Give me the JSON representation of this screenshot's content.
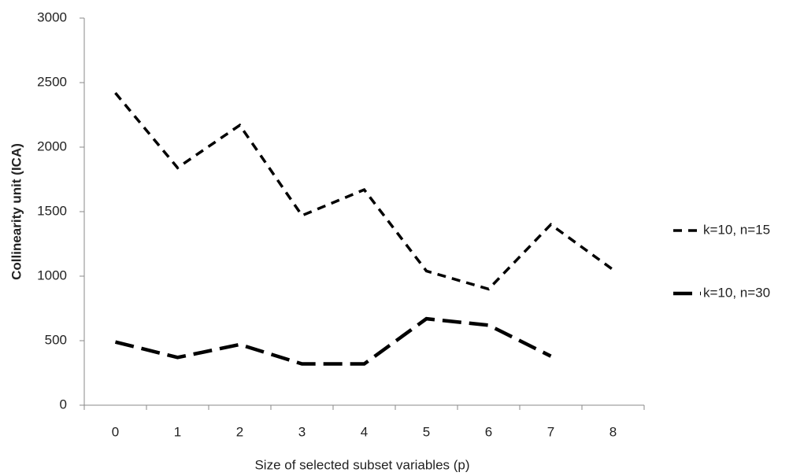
{
  "chart_data": {
    "type": "line",
    "x_label": "Size of selected subset variables (p)",
    "y_label": "Collinearity unit (ICA)",
    "categories": [
      "0",
      "1",
      "2",
      "3",
      "4",
      "5",
      "6",
      "7",
      "8"
    ],
    "series": [
      {
        "name": "k=10, n=15",
        "color": "#000000",
        "dash": "short",
        "values": [
          2420,
          1840,
          2170,
          1470,
          1670,
          1040,
          900,
          1400,
          1050
        ]
      },
      {
        "name": "k=10, n=30",
        "color": "#000000",
        "dash": "long",
        "values": [
          490,
          370,
          470,
          320,
          320,
          670,
          620,
          380,
          null
        ]
      }
    ],
    "ylim": [
      0,
      3000
    ],
    "yticks": [
      0,
      500,
      1000,
      1500,
      2000,
      2500,
      3000
    ],
    "grid": false,
    "legend": "right"
  }
}
